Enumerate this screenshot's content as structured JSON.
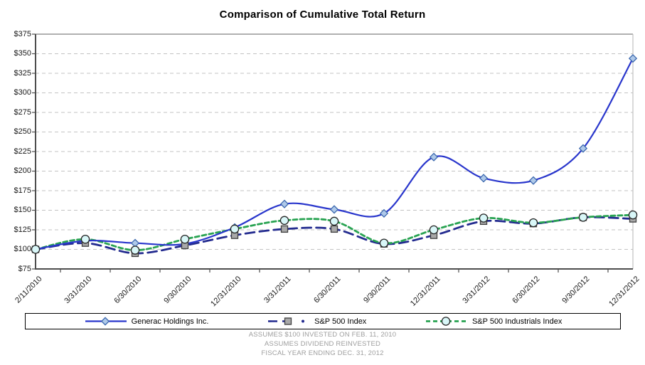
{
  "title": "Comparison of Cumulative Total Return",
  "footer": [
    "ASSUMES $100 INVESTED ON FEB. 11, 2010",
    "ASSUMES DIVIDEND REINVESTED",
    "FISCAL YEAR ENDING DEC. 31, 2012"
  ],
  "colors": {
    "grid": "#C3C3C3",
    "axis": "#4D4D4D",
    "plot_top_border": "#808080",
    "plot_right_border": "#C0C0C0",
    "footer_text": "#9E9E9E",
    "legend_border": "#000000"
  },
  "chart_data": {
    "type": "line",
    "title": "Comparison of Cumulative Total Return",
    "x_labels": [
      "2/11/2010",
      "3/31/2010",
      "6/30/2010",
      "9/30/2010",
      "12/31/2010",
      "3/31/2011",
      "6/30/2011",
      "9/30/2011",
      "12/31/2011",
      "3/31/2012",
      "6/30/2012",
      "9/30/2012",
      "12/31/2012"
    ],
    "y_tick_labels": [
      "$375",
      "$350",
      "$325",
      "$300",
      "$275",
      "$250",
      "$225",
      "$200",
      "$175",
      "$150",
      "$125",
      "$100",
      "$75"
    ],
    "ylim": [
      75,
      375
    ],
    "y_step": 25,
    "grid": true,
    "smoothed_lines": true,
    "legend_position": "bottom",
    "series": [
      {
        "name": "Generac Holdings Inc.",
        "color": "#2936CC",
        "dash": "solid",
        "marker": "diamond",
        "marker_fill": "#AFC9E9",
        "marker_stroke": "#3C68AE",
        "values": [
          100,
          111,
          108,
          107,
          128,
          158,
          151,
          146,
          218,
          191,
          188,
          229,
          344
        ]
      },
      {
        "name": "S&P 500 Index",
        "color": "#232B8F",
        "dash": "long-dash",
        "marker": "square",
        "marker_fill": "#A9A9A9",
        "marker_stroke": "#404040",
        "values": [
          100,
          108,
          95,
          105,
          118,
          126,
          126,
          107,
          118,
          136,
          133,
          141,
          139
        ]
      },
      {
        "name": "S&P 500 Industrials Index",
        "color": "#29A352",
        "dash": "short-dash",
        "marker": "circle",
        "marker_fill": "#D9F7F8",
        "marker_stroke": "#262626",
        "values": [
          100,
          113,
          99,
          113,
          126,
          137,
          136,
          108,
          125,
          140,
          134,
          141,
          144
        ]
      }
    ]
  }
}
